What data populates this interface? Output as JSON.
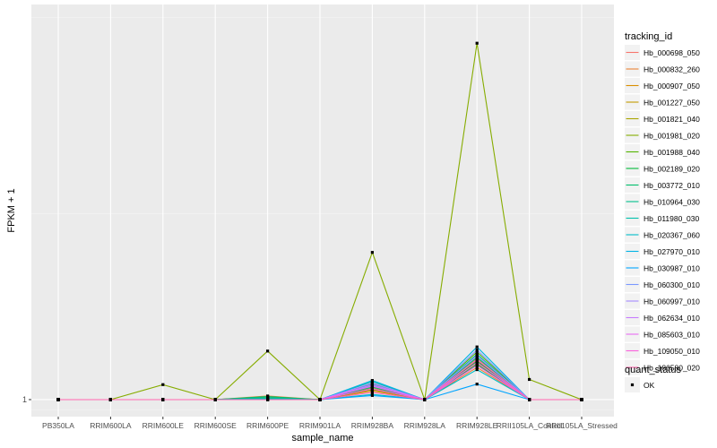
{
  "chart_data": {
    "type": "line",
    "xlabel": "sample_name",
    "ylabel": "FPKM + 1",
    "categories": [
      "PB350LA",
      "RRIM600LA",
      "RRIM600LE",
      "RRIM600SE",
      "RRIM600PE",
      "RRIM901LA",
      "RRIM928BA",
      "RRIM928LA",
      "RRIM928LE",
      "RRII105LA_Control",
      "RRII105LA_Stressed"
    ],
    "y_ticks": [
      1
    ],
    "y_tick_labels": [
      "1"
    ],
    "ylim": [
      0.67,
      8.65
    ],
    "grid": true,
    "legend_placement": "right",
    "legend_color_title": "tracking_id",
    "legend_shape_title": "quant_status",
    "legend_shape_entries": [
      "OK"
    ],
    "series": [
      {
        "name": "Hb_000698_050",
        "color": "#F8766D",
        "values": [
          1,
          1,
          1,
          1,
          1.03,
          1,
          1.31,
          1,
          1.87,
          1,
          1
        ]
      },
      {
        "name": "Hb_000832_260",
        "color": "#EB8335",
        "values": [
          1,
          1,
          1,
          1,
          1.07,
          1,
          1.19,
          1,
          1.62,
          1,
          1
        ]
      },
      {
        "name": "Hb_000907_050",
        "color": "#DA8F00",
        "values": [
          1,
          1,
          1,
          1,
          1.04,
          1,
          1.17,
          1,
          1.75,
          1,
          1
        ]
      },
      {
        "name": "Hb_001227_050",
        "color": "#C49A00",
        "values": [
          1,
          1,
          1,
          1,
          1.05,
          1,
          1.22,
          1,
          1.7,
          1,
          1
        ]
      },
      {
        "name": "Hb_001821_040",
        "color": "#A9A400",
        "values": [
          1,
          1,
          1,
          1.0,
          1.02,
          1,
          1.25,
          1,
          1.8,
          1,
          1
        ]
      },
      {
        "name": "Hb_001981_020",
        "color": "#86AC00",
        "values": [
          1,
          1,
          1.29,
          1,
          1.94,
          1,
          3.85,
          1,
          7.9,
          1.39,
          1
        ]
      },
      {
        "name": "Hb_001988_040",
        "color": "#53B400",
        "values": [
          1,
          1,
          1,
          1,
          1.02,
          1,
          1.2,
          1,
          1.92,
          1,
          1
        ]
      },
      {
        "name": "Hb_002189_020",
        "color": "#00BA38",
        "values": [
          1,
          1,
          1,
          1,
          1.03,
          1,
          1.28,
          1,
          1.74,
          1,
          1
        ]
      },
      {
        "name": "Hb_003772_010",
        "color": "#00BE6C",
        "values": [
          1,
          1,
          1,
          1,
          1.06,
          1,
          1.24,
          1,
          1.68,
          1,
          1
        ]
      },
      {
        "name": "Hb_010964_030",
        "color": "#00C08D",
        "values": [
          1,
          1,
          1,
          1,
          1.04,
          1,
          1.3,
          1,
          1.82,
          1,
          1
        ]
      },
      {
        "name": "Hb_011980_030",
        "color": "#00C0AB",
        "values": [
          1,
          1,
          1,
          1,
          1.02,
          1,
          1.35,
          1,
          1.88,
          1,
          1
        ]
      },
      {
        "name": "Hb_020367_060",
        "color": "#00BCC8",
        "values": [
          1,
          1,
          1,
          1,
          1.01,
          1,
          1.1,
          1,
          1.58,
          1,
          1
        ]
      },
      {
        "name": "Hb_027970_010",
        "color": "#00B3E5",
        "values": [
          1,
          1,
          1,
          1,
          1.0,
          1,
          1.37,
          1,
          2.02,
          1,
          1
        ]
      },
      {
        "name": "Hb_030987_010",
        "color": "#00A5FF",
        "values": [
          1,
          1,
          1,
          1,
          1.0,
          1,
          1.08,
          1,
          1.3,
          1,
          1
        ]
      },
      {
        "name": "Hb_060300_010",
        "color": "#7A97FF",
        "values": [
          1,
          1,
          1,
          1,
          1.0,
          1,
          1.27,
          1,
          1.96,
          1,
          1
        ]
      },
      {
        "name": "Hb_060997_010",
        "color": "#A58AFF",
        "values": [
          1,
          1,
          1,
          1,
          1.0,
          1,
          1.32,
          1,
          1.85,
          1,
          1
        ]
      },
      {
        "name": "Hb_062634_010",
        "color": "#C77CFF",
        "values": [
          1,
          1,
          1,
          1,
          1.0,
          1,
          1.29,
          1,
          1.78,
          1,
          1
        ]
      },
      {
        "name": "Hb_085603_010",
        "color": "#E76BF3",
        "values": [
          1,
          1,
          1,
          1,
          1.0,
          1,
          1.26,
          1,
          1.72,
          1,
          1
        ]
      },
      {
        "name": "Hb_109050_010",
        "color": "#FA62DB",
        "values": [
          1,
          1,
          1,
          1,
          1.0,
          1,
          1.21,
          1,
          1.66,
          1,
          1
        ]
      },
      {
        "name": "Hb_186580_020",
        "color": "#FF65AE",
        "values": [
          1,
          1,
          1,
          1,
          1.0,
          1,
          1.14,
          1,
          1.77,
          1,
          1
        ]
      }
    ]
  }
}
